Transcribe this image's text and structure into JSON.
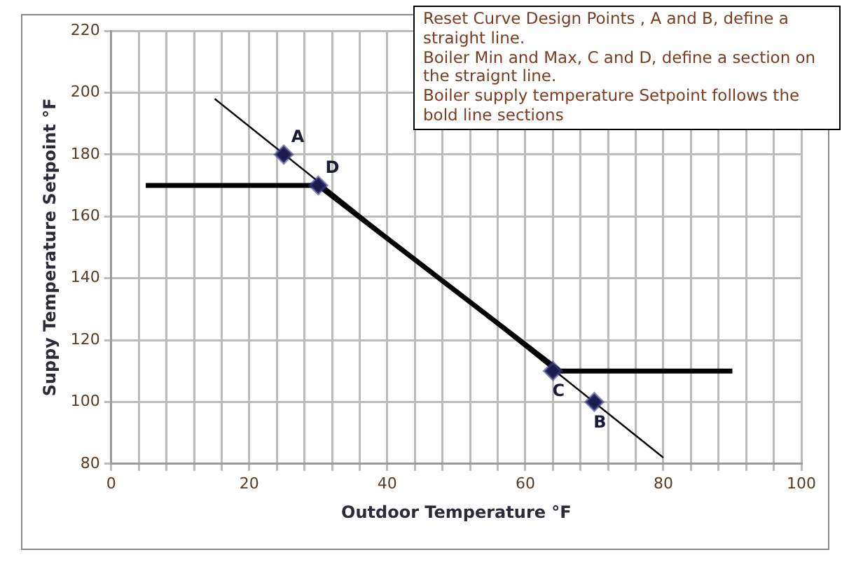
{
  "chart_data": {
    "type": "line",
    "xlabel": "Outdoor Temperature °F",
    "ylabel": "Suppy Temperature Setpoint °F",
    "xlim": [
      0,
      100
    ],
    "xticks": [
      0,
      {
        "value": 4,
        "label": null
      },
      {
        "value": 8,
        "label": null
      },
      {
        "value": 12,
        "label": null
      },
      {
        "value": 16,
        "label": null
      },
      20,
      {
        "value": 24,
        "label": null
      },
      {
        "value": 28,
        "label": null
      },
      {
        "value": 32,
        "label": null
      },
      {
        "value": 36,
        "label": null
      },
      40,
      {
        "value": 44,
        "label": null
      },
      {
        "value": 48,
        "label": null
      },
      {
        "value": 52,
        "label": null
      },
      {
        "value": 56,
        "label": null
      },
      60,
      {
        "value": 64,
        "label": null
      },
      {
        "value": 68,
        "label": null
      },
      {
        "value": 72,
        "label": null
      },
      {
        "value": 76,
        "label": null
      },
      80,
      {
        "value": 84,
        "label": null
      },
      {
        "value": 88,
        "label": null
      },
      {
        "value": 92,
        "label": null
      },
      {
        "value": 96,
        "label": null
      },
      100
    ],
    "ylim": [
      80,
      220
    ],
    "yticks": [
      80,
      100,
      120,
      140,
      160,
      180,
      200,
      220
    ],
    "grid": true,
    "legend": false,
    "series": [
      {
        "type": "line",
        "color": "#000000",
        "marker": "none",
        "x": [
          15,
          80
        ],
        "values": [
          198,
          82
        ]
      },
      {
        "type": "line",
        "color": "#000000",
        "marker": "none",
        "x": [
          5,
          30,
          65,
          90
        ],
        "values": [
          170,
          170,
          110,
          110
        ]
      },
      {
        "type": "scatter",
        "color": "#1c1c4c",
        "marker": "diamond",
        "x": [
          25,
          30,
          64,
          70
        ],
        "values": [
          180,
          170,
          110,
          100
        ]
      }
    ],
    "annotations": [
      {
        "text": "A",
        "x": 25,
        "y": 180
      },
      {
        "text": "D",
        "x": 30,
        "y": 170
      },
      {
        "text": "C",
        "x": 64,
        "y": 110
      },
      {
        "text": "B",
        "x": 70,
        "y": 100
      },
      "Reset Curve Design Points , A and B, define a straight line.",
      "Boiler Min and Max, C and D, define a section on the straignt line.",
      "Boiler supply temperature Setpoint follows the bold line sections"
    ]
  }
}
